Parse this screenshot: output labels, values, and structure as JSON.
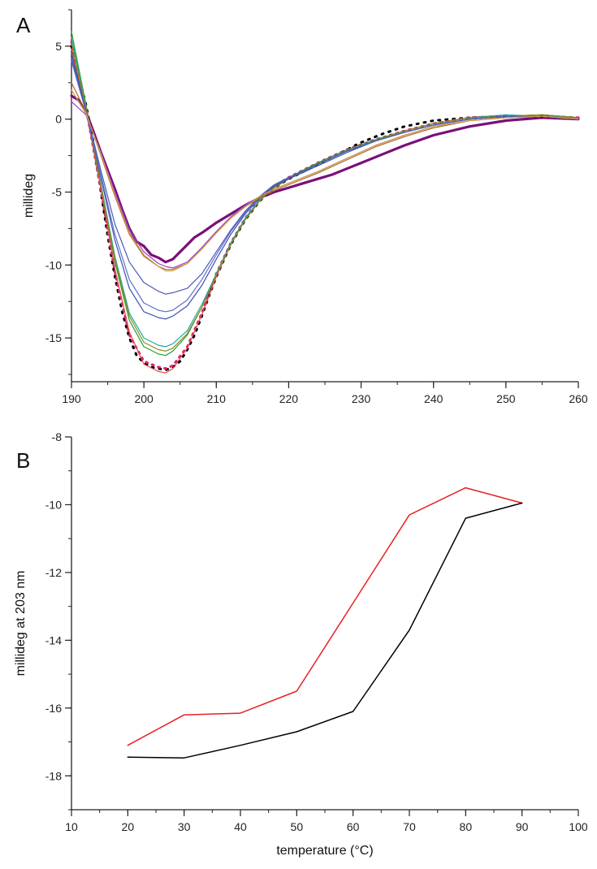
{
  "chart_data": [
    {
      "panel": "A",
      "type": "line",
      "xlabel": "",
      "ylabel": "millideg",
      "xlim": [
        190,
        260
      ],
      "ylim": [
        -18,
        7.5
      ],
      "xticks": [
        190,
        200,
        210,
        220,
        230,
        240,
        250,
        260
      ],
      "yticks": [
        5,
        0,
        -5,
        -10,
        -15
      ],
      "grid": false,
      "series": [
        {
          "color": "#7a0f7a",
          "width": 3.2,
          "dash": "",
          "x": [
            190,
            191,
            192,
            193,
            194,
            195,
            196,
            197,
            198,
            199,
            200,
            201,
            202,
            203,
            204,
            205,
            206,
            207,
            208,
            210,
            212,
            214,
            216,
            218,
            220,
            222,
            224,
            226,
            228,
            230,
            233,
            236,
            240,
            245,
            250,
            255,
            260
          ],
          "y": [
            1.6,
            1.3,
            0.5,
            -0.8,
            -2.2,
            -3.5,
            -4.8,
            -6.2,
            -7.5,
            -8.4,
            -8.7,
            -9.3,
            -9.5,
            -9.8,
            -9.6,
            -9.1,
            -8.6,
            -8.1,
            -7.8,
            -7.1,
            -6.5,
            -5.9,
            -5.4,
            -5.0,
            -4.7,
            -4.4,
            -4.1,
            -3.8,
            -3.4,
            -3.0,
            -2.4,
            -1.8,
            -1.1,
            -0.5,
            -0.1,
            0.1,
            0.0
          ]
        },
        {
          "color": "#000000",
          "width": 3,
          "dash": "2 7",
          "x": [
            190,
            191,
            192,
            193,
            194,
            195,
            196,
            197,
            198,
            199,
            200,
            201,
            202,
            203,
            204,
            205,
            206,
            207,
            208,
            209,
            210,
            212,
            214,
            216,
            218,
            220,
            222,
            224,
            226,
            228,
            230,
            233,
            236,
            240,
            245,
            250,
            255,
            260
          ],
          "y": [
            5.0,
            3.0,
            1.0,
            -1.5,
            -4.8,
            -8.0,
            -10.8,
            -13.2,
            -15.0,
            -16.2,
            -16.7,
            -17.0,
            -17.1,
            -17.2,
            -17.0,
            -16.6,
            -15.8,
            -14.8,
            -13.5,
            -12.1,
            -10.8,
            -8.6,
            -6.9,
            -5.6,
            -4.7,
            -4.1,
            -3.6,
            -3.1,
            -2.6,
            -2.1,
            -1.6,
            -1.0,
            -0.5,
            -0.1,
            0.1,
            0.2,
            0.2,
            0.1
          ]
        },
        {
          "color": "#e0207a",
          "width": 3,
          "dash": "2 6",
          "x": [
            190,
            192,
            194,
            196,
            198,
            200,
            202,
            203,
            204,
            206,
            208,
            210,
            212,
            214,
            216,
            218,
            220,
            224,
            228,
            232,
            236,
            240,
            245,
            250,
            255,
            260
          ],
          "y": [
            5.3,
            0.8,
            -4.7,
            -10.5,
            -14.8,
            -16.6,
            -17.0,
            -17.1,
            -16.9,
            -15.6,
            -13.3,
            -10.6,
            -8.5,
            -6.8,
            -5.5,
            -4.6,
            -4.0,
            -3.0,
            -2.1,
            -1.4,
            -0.8,
            -0.3,
            0.1,
            0.2,
            0.2,
            0.1
          ]
        },
        {
          "color": "#e64848",
          "width": 1.2,
          "dash": "",
          "x": [
            190,
            192,
            194,
            196,
            198,
            200,
            202,
            203,
            204,
            206,
            208,
            210,
            212,
            214,
            216,
            218,
            220,
            224,
            228,
            232,
            236,
            240,
            245,
            250,
            255,
            260
          ],
          "y": [
            4.8,
            0.6,
            -4.6,
            -10.3,
            -14.6,
            -16.8,
            -17.3,
            -17.4,
            -17.1,
            -15.7,
            -13.4,
            -10.8,
            -8.6,
            -6.9,
            -5.6,
            -4.7,
            -4.1,
            -3.1,
            -2.2,
            -1.5,
            -0.9,
            -0.4,
            0.0,
            0.2,
            0.3,
            0.1
          ]
        },
        {
          "color": "#2aa02a",
          "width": 1.2,
          "dash": "",
          "x": [
            190,
            192,
            194,
            196,
            198,
            200,
            202,
            203,
            204,
            206,
            208,
            210,
            212,
            214,
            216,
            218,
            220,
            224,
            228,
            232,
            236,
            240,
            245,
            250,
            255,
            260
          ],
          "y": [
            6.0,
            1.0,
            -4.4,
            -9.8,
            -13.8,
            -15.6,
            -16.1,
            -16.2,
            -15.9,
            -14.8,
            -12.9,
            -10.6,
            -8.5,
            -6.8,
            -5.5,
            -4.6,
            -4.0,
            -3.0,
            -2.1,
            -1.4,
            -0.8,
            -0.3,
            0.1,
            0.2,
            0.3,
            0.1
          ]
        },
        {
          "color": "#20a8a8",
          "width": 1.2,
          "dash": "",
          "x": [
            190,
            192,
            194,
            196,
            198,
            200,
            202,
            203,
            204,
            206,
            208,
            210,
            212,
            214,
            216,
            218,
            220,
            224,
            228,
            232,
            236,
            240,
            245,
            250,
            255,
            260
          ],
          "y": [
            5.6,
            0.9,
            -4.3,
            -9.4,
            -13.3,
            -15.0,
            -15.5,
            -15.6,
            -15.4,
            -14.5,
            -12.7,
            -10.6,
            -8.5,
            -6.8,
            -5.5,
            -4.6,
            -4.0,
            -3.1,
            -2.2,
            -1.5,
            -0.8,
            -0.3,
            0.1,
            0.3,
            0.2,
            0.1
          ]
        },
        {
          "color": "#8a8a20",
          "width": 1.2,
          "dash": "",
          "x": [
            190,
            192,
            194,
            196,
            198,
            200,
            202,
            203,
            204,
            206,
            208,
            210,
            212,
            214,
            216,
            218,
            220,
            224,
            228,
            232,
            236,
            240,
            245,
            250,
            255,
            260
          ],
          "y": [
            5.2,
            0.8,
            -4.4,
            -9.6,
            -13.5,
            -15.3,
            -15.8,
            -15.9,
            -15.7,
            -14.7,
            -12.9,
            -10.7,
            -8.6,
            -6.9,
            -5.6,
            -4.7,
            -4.1,
            -3.1,
            -2.2,
            -1.5,
            -0.8,
            -0.3,
            0.1,
            0.2,
            0.3,
            0.1
          ]
        },
        {
          "color": "#3b4fb0",
          "width": 1.2,
          "dash": "",
          "x": [
            190,
            192,
            194,
            196,
            198,
            200,
            202,
            203,
            204,
            206,
            208,
            210,
            212,
            214,
            216,
            218,
            220,
            224,
            228,
            232,
            236,
            240,
            245,
            250,
            255,
            260
          ],
          "y": [
            4.5,
            0.6,
            -3.9,
            -8.3,
            -11.6,
            -13.2,
            -13.6,
            -13.7,
            -13.5,
            -12.8,
            -11.4,
            -9.6,
            -7.9,
            -6.5,
            -5.4,
            -4.6,
            -4.1,
            -3.2,
            -2.3,
            -1.5,
            -0.9,
            -0.4,
            0.0,
            0.2,
            0.2,
            0.0
          ]
        },
        {
          "color": "#5f6fc8",
          "width": 1.2,
          "dash": "",
          "x": [
            190,
            192,
            194,
            196,
            198,
            200,
            202,
            203,
            204,
            206,
            208,
            210,
            212,
            214,
            216,
            218,
            220,
            224,
            228,
            232,
            236,
            240,
            245,
            250,
            255,
            260
          ],
          "y": [
            4.0,
            0.5,
            -3.7,
            -7.9,
            -11.0,
            -12.6,
            -13.1,
            -13.2,
            -13.1,
            -12.4,
            -11.0,
            -9.3,
            -7.7,
            -6.4,
            -5.3,
            -4.5,
            -4.0,
            -3.1,
            -2.2,
            -1.5,
            -0.9,
            -0.4,
            0.0,
            0.2,
            0.2,
            0.0
          ]
        },
        {
          "color": "#4a5ab8",
          "width": 1.2,
          "dash": "",
          "x": [
            190,
            192,
            194,
            196,
            198,
            200,
            202,
            203,
            204,
            206,
            208,
            210,
            212,
            214,
            216,
            218,
            220,
            224,
            228,
            232,
            236,
            240,
            245,
            250,
            255,
            260
          ],
          "y": [
            4.2,
            0.6,
            -3.4,
            -7.2,
            -9.8,
            -11.2,
            -11.8,
            -12.0,
            -11.9,
            -11.6,
            -10.6,
            -9.1,
            -7.6,
            -6.3,
            -5.3,
            -4.5,
            -4.0,
            -3.1,
            -2.2,
            -1.5,
            -0.9,
            -0.4,
            0.0,
            0.2,
            0.2,
            0.0
          ]
        },
        {
          "color": "#b06a30",
          "width": 1.2,
          "dash": "",
          "x": [
            190,
            192,
            194,
            196,
            198,
            200,
            202,
            203,
            204,
            206,
            208,
            210,
            212,
            214,
            216,
            218,
            220,
            224,
            228,
            232,
            236,
            240,
            245,
            250,
            255,
            260
          ],
          "y": [
            2.5,
            0.5,
            -2.4,
            -5.3,
            -7.9,
            -9.4,
            -10.1,
            -10.3,
            -10.3,
            -9.9,
            -8.9,
            -7.8,
            -6.8,
            -6.0,
            -5.4,
            -4.9,
            -4.5,
            -3.7,
            -2.8,
            -1.9,
            -1.2,
            -0.6,
            -0.1,
            0.1,
            0.2,
            0.0
          ]
        },
        {
          "color": "#a040c8",
          "width": 1.2,
          "dash": "",
          "x": [
            190,
            192,
            194,
            196,
            198,
            200,
            202,
            203,
            204,
            206,
            208,
            210,
            212,
            214,
            216,
            218,
            220,
            224,
            228,
            232,
            236,
            240,
            245,
            250,
            255,
            260
          ],
          "y": [
            1.2,
            0.3,
            -2.2,
            -5.0,
            -7.6,
            -9.1,
            -9.9,
            -10.1,
            -10.2,
            -9.8,
            -8.8,
            -7.7,
            -6.7,
            -5.9,
            -5.3,
            -4.8,
            -4.4,
            -3.6,
            -2.7,
            -1.8,
            -1.1,
            -0.5,
            -0.1,
            0.1,
            0.2,
            0.0
          ]
        },
        {
          "color": "#c8a040",
          "width": 1.2,
          "dash": "",
          "x": [
            190,
            192,
            194,
            196,
            198,
            200,
            202,
            203,
            204,
            206,
            208,
            210,
            212,
            214,
            216,
            218,
            220,
            224,
            228,
            232,
            236,
            240,
            245,
            250,
            255,
            260
          ],
          "y": [
            2.0,
            0.4,
            -2.3,
            -5.2,
            -7.8,
            -9.3,
            -10.1,
            -10.4,
            -10.4,
            -9.9,
            -8.9,
            -7.8,
            -6.8,
            -6.0,
            -5.3,
            -4.8,
            -4.4,
            -3.6,
            -2.7,
            -1.8,
            -1.1,
            -0.5,
            -0.1,
            0.1,
            0.2,
            0.0
          ]
        }
      ],
      "panel_label": "A"
    },
    {
      "panel": "B",
      "type": "line",
      "xlabel": "temperature (°C)",
      "ylabel": "millideg at 203 nm",
      "xlim": [
        10,
        100
      ],
      "ylim": [
        -19,
        -8
      ],
      "xticks": [
        10,
        20,
        30,
        40,
        50,
        60,
        70,
        80,
        90,
        100
      ],
      "yticks": [
        -8,
        -10,
        -12,
        -14,
        -16,
        -18
      ],
      "grid": false,
      "series": [
        {
          "color": "#e82020",
          "width": 1.5,
          "x": [
            20,
            30,
            40,
            50,
            60,
            70,
            80,
            90
          ],
          "y": [
            -17.1,
            -16.2,
            -16.15,
            -15.5,
            -12.9,
            -10.3,
            -9.5,
            -9.95
          ]
        },
        {
          "color": "#000000",
          "width": 1.5,
          "x": [
            20,
            30,
            40,
            50,
            60,
            70,
            80,
            90
          ],
          "y": [
            -17.45,
            -17.47,
            -17.1,
            -16.7,
            -16.1,
            -13.7,
            -10.4,
            -9.95
          ]
        }
      ],
      "panel_label": "B"
    }
  ]
}
